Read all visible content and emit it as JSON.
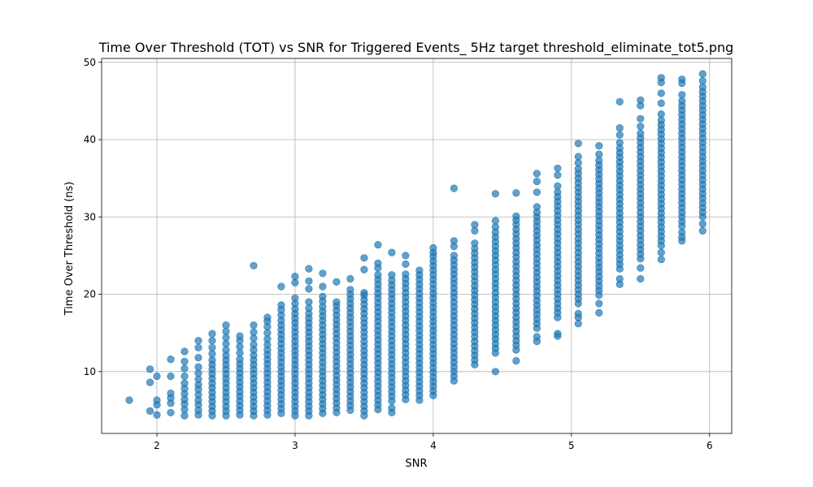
{
  "chart_data": {
    "type": "scatter",
    "title": "Time Over Threshold (TOT) vs SNR for Triggered Events_ 5Hz target threshold_eliminate_tot5.png",
    "xlabel": "SNR",
    "ylabel": "Time Over Threshold (ns)",
    "xlim": [
      1.6,
      6.16
    ],
    "ylim": [
      2.0,
      50.5
    ],
    "xticks": [
      2,
      3,
      4,
      5,
      6
    ],
    "yticks": [
      10,
      20,
      30,
      40,
      50
    ],
    "grid": true,
    "legend": "none",
    "marker_color": "#1f77b4",
    "marker_alpha": 0.7,
    "columns": [
      {
        "x": 1.8,
        "y": [
          6.3
        ]
      },
      {
        "x": 1.95,
        "y": [
          4.9,
          8.6,
          10.3
        ]
      },
      {
        "x": 2.0,
        "y": [
          4.4,
          5.7,
          6.3,
          9.4
        ]
      },
      {
        "x": 2.1,
        "y": [
          4.7,
          5.9,
          6.6,
          7.2,
          9.4,
          11.6
        ]
      },
      {
        "x": 2.2,
        "y": [
          4.3,
          5.1,
          5.8,
          6.4,
          7.1,
          7.8,
          8.5,
          9.4,
          10.4,
          11.3,
          12.6
        ]
      },
      {
        "x": 2.3,
        "y": [
          4.4,
          5.0,
          5.7,
          6.3,
          7.0,
          7.7,
          8.3,
          9.0,
          9.8,
          10.6,
          11.8,
          13.1,
          14.0
        ]
      },
      {
        "x": 2.4,
        "y": [
          4.3,
          4.9,
          5.5,
          6.1,
          6.7,
          7.3,
          7.9,
          8.5,
          9.1,
          9.7,
          10.3,
          10.9,
          11.5,
          12.3,
          13.1,
          14.0,
          14.9
        ]
      },
      {
        "x": 2.5,
        "y": [
          4.3,
          4.9,
          5.5,
          6.1,
          6.7,
          7.3,
          7.9,
          8.5,
          9.1,
          9.7,
          10.3,
          10.9,
          11.5,
          12.1,
          12.8,
          13.6,
          14.4,
          15.2,
          16.0
        ]
      },
      {
        "x": 2.6,
        "y": [
          4.4,
          5.0,
          5.6,
          6.2,
          6.8,
          7.4,
          8.0,
          8.6,
          9.2,
          9.8,
          10.4,
          11.0,
          11.6,
          12.4,
          13.2,
          14.0,
          14.6
        ]
      },
      {
        "x": 2.7,
        "y": [
          4.3,
          4.9,
          5.5,
          6.1,
          6.7,
          7.3,
          7.9,
          8.5,
          9.1,
          9.7,
          10.3,
          10.9,
          11.5,
          12.1,
          12.8,
          13.5,
          14.3,
          15.1,
          16.0,
          23.7
        ]
      },
      {
        "x": 2.8,
        "y": [
          4.4,
          5.0,
          5.6,
          6.2,
          6.8,
          7.4,
          8.0,
          8.6,
          9.2,
          9.8,
          10.4,
          11.0,
          11.6,
          12.2,
          12.8,
          13.5,
          14.2,
          15.0,
          15.8,
          16.5,
          17.0
        ]
      },
      {
        "x": 2.9,
        "y": [
          4.6,
          5.2,
          5.8,
          6.4,
          7.0,
          7.6,
          8.2,
          8.8,
          9.4,
          10.0,
          10.6,
          11.2,
          11.8,
          12.4,
          13.0,
          13.6,
          14.2,
          14.8,
          15.4,
          16.0,
          16.6,
          17.3,
          18.0,
          18.6,
          21.0
        ]
      },
      {
        "x": 3.0,
        "y": [
          4.3,
          4.9,
          5.5,
          6.1,
          6.7,
          7.3,
          7.9,
          8.5,
          9.1,
          9.7,
          10.3,
          10.9,
          11.5,
          12.1,
          12.7,
          13.3,
          13.9,
          14.5,
          15.1,
          15.7,
          16.3,
          16.9,
          17.5,
          18.1,
          18.8,
          19.5,
          21.5,
          22.3
        ]
      },
      {
        "x": 3.1,
        "y": [
          4.3,
          4.9,
          5.5,
          6.1,
          6.7,
          7.3,
          7.9,
          8.5,
          9.1,
          9.7,
          10.3,
          10.9,
          11.5,
          12.1,
          12.7,
          13.3,
          13.9,
          14.5,
          15.1,
          15.7,
          16.3,
          16.9,
          17.5,
          18.2,
          19.0,
          20.7,
          21.7,
          23.3
        ]
      },
      {
        "x": 3.2,
        "y": [
          4.6,
          5.2,
          5.8,
          6.4,
          7.0,
          7.6,
          8.2,
          8.8,
          9.4,
          10.0,
          10.6,
          11.2,
          11.8,
          12.4,
          13.0,
          13.6,
          14.2,
          14.8,
          15.4,
          16.0,
          16.6,
          17.2,
          17.8,
          18.4,
          19.1,
          19.7,
          21.0,
          22.7
        ]
      },
      {
        "x": 3.3,
        "y": [
          4.7,
          5.3,
          5.9,
          6.5,
          7.1,
          7.7,
          8.3,
          8.9,
          9.5,
          10.1,
          10.7,
          11.3,
          11.9,
          12.5,
          13.1,
          13.7,
          14.3,
          14.9,
          15.5,
          16.1,
          16.7,
          17.3,
          17.9,
          18.5,
          19.0,
          21.6
        ]
      },
      {
        "x": 3.4,
        "y": [
          5.0,
          5.6,
          6.2,
          6.8,
          7.4,
          8.0,
          8.6,
          9.2,
          9.8,
          10.4,
          11.0,
          11.6,
          12.2,
          12.8,
          13.4,
          14.0,
          14.6,
          15.2,
          15.8,
          16.4,
          17.0,
          17.6,
          18.2,
          18.8,
          19.4,
          20.0,
          20.6,
          22.0
        ]
      },
      {
        "x": 3.5,
        "y": [
          4.3,
          4.9,
          5.5,
          6.1,
          6.7,
          7.3,
          7.9,
          8.5,
          9.1,
          9.7,
          10.3,
          10.9,
          11.5,
          12.1,
          12.7,
          13.3,
          13.9,
          14.5,
          15.1,
          15.7,
          16.3,
          16.9,
          17.5,
          18.1,
          18.7,
          19.3,
          19.9,
          20.2,
          23.2,
          24.7
        ]
      },
      {
        "x": 3.6,
        "y": [
          5.1,
          5.7,
          6.3,
          6.9,
          7.5,
          8.1,
          8.7,
          9.3,
          9.9,
          10.5,
          11.1,
          11.7,
          12.3,
          12.9,
          13.5,
          14.1,
          14.7,
          15.3,
          15.9,
          16.5,
          17.1,
          17.7,
          18.3,
          18.9,
          19.5,
          20.1,
          20.7,
          21.3,
          21.9,
          22.5,
          23.4,
          24.0,
          26.4
        ]
      },
      {
        "x": 3.7,
        "y": [
          4.7,
          5.3,
          6.2,
          6.8,
          7.4,
          8.0,
          8.6,
          9.2,
          9.8,
          10.4,
          11.0,
          11.6,
          12.2,
          12.8,
          13.4,
          14.0,
          14.6,
          15.2,
          15.8,
          16.4,
          17.0,
          17.6,
          18.2,
          18.8,
          19.4,
          20.0,
          20.6,
          21.2,
          21.8,
          22.5,
          25.4
        ]
      },
      {
        "x": 3.8,
        "y": [
          6.4,
          7.0,
          7.6,
          8.2,
          8.8,
          9.4,
          10.0,
          10.6,
          11.2,
          11.8,
          12.4,
          13.0,
          13.6,
          14.2,
          14.8,
          15.4,
          16.0,
          16.6,
          17.2,
          17.8,
          18.4,
          19.0,
          19.6,
          20.2,
          20.8,
          21.4,
          22.0,
          22.6,
          23.9,
          25.0
        ]
      },
      {
        "x": 3.9,
        "y": [
          6.3,
          6.9,
          7.5,
          8.1,
          8.7,
          9.3,
          9.9,
          10.5,
          11.1,
          11.7,
          12.3,
          12.9,
          13.5,
          14.1,
          14.7,
          15.3,
          15.9,
          16.5,
          17.1,
          17.7,
          18.3,
          18.9,
          19.5,
          20.1,
          20.7,
          21.3,
          21.9,
          22.5,
          23.1
        ]
      },
      {
        "x": 4.0,
        "y": [
          6.9,
          7.5,
          8.1,
          8.7,
          9.3,
          9.9,
          10.5,
          11.1,
          11.7,
          12.3,
          12.9,
          13.5,
          14.1,
          14.7,
          15.3,
          15.9,
          16.5,
          17.1,
          17.7,
          18.3,
          18.9,
          19.5,
          20.1,
          20.7,
          21.3,
          21.9,
          22.5,
          23.1,
          23.7,
          24.3,
          24.9,
          25.4,
          26.0
        ]
      },
      {
        "x": 4.15,
        "y": [
          8.8,
          9.4,
          10.0,
          10.6,
          11.2,
          11.8,
          12.4,
          13.0,
          13.6,
          14.2,
          14.8,
          15.4,
          16.0,
          16.6,
          17.2,
          17.8,
          18.4,
          19.0,
          19.6,
          20.2,
          20.8,
          21.4,
          22.0,
          22.6,
          23.2,
          23.8,
          24.4,
          25.0,
          26.2,
          26.9,
          33.7
        ]
      },
      {
        "x": 4.3,
        "y": [
          10.9,
          11.5,
          12.1,
          12.7,
          13.3,
          13.9,
          14.5,
          15.1,
          15.7,
          16.3,
          16.9,
          17.5,
          18.1,
          18.7,
          19.3,
          19.9,
          20.5,
          21.1,
          21.7,
          22.3,
          22.9,
          23.5,
          24.1,
          24.7,
          25.3,
          25.9,
          26.6,
          28.2,
          29.0
        ]
      },
      {
        "x": 4.45,
        "y": [
          10.0,
          12.4,
          13.0,
          13.6,
          14.2,
          14.8,
          15.4,
          16.0,
          16.6,
          17.2,
          17.8,
          18.4,
          19.0,
          19.6,
          20.2,
          20.8,
          21.4,
          22.0,
          22.6,
          23.2,
          23.8,
          24.4,
          25.0,
          25.6,
          26.2,
          26.8,
          27.4,
          28.0,
          28.7,
          29.5,
          33.0
        ]
      },
      {
        "x": 4.6,
        "y": [
          11.4,
          12.8,
          13.4,
          14.0,
          14.6,
          15.2,
          15.8,
          16.4,
          17.0,
          17.6,
          18.2,
          18.8,
          19.4,
          20.0,
          20.6,
          21.2,
          21.8,
          22.4,
          23.0,
          23.6,
          24.2,
          24.8,
          25.4,
          26.0,
          26.6,
          27.2,
          27.8,
          28.4,
          29.0,
          29.6,
          30.1,
          33.1
        ]
      },
      {
        "x": 4.75,
        "y": [
          13.9,
          14.5,
          15.6,
          16.2,
          16.8,
          17.4,
          18.0,
          18.6,
          19.2,
          19.8,
          20.4,
          21.0,
          21.6,
          22.2,
          22.8,
          23.4,
          24.0,
          24.6,
          25.2,
          25.8,
          26.4,
          27.0,
          27.6,
          28.2,
          28.8,
          29.4,
          30.0,
          30.6,
          31.3,
          33.2,
          34.6,
          35.6
        ]
      },
      {
        "x": 4.9,
        "y": [
          14.6,
          14.9,
          17.0,
          17.6,
          18.2,
          18.8,
          19.4,
          20.0,
          20.6,
          21.2,
          21.8,
          22.4,
          23.0,
          23.6,
          24.2,
          24.8,
          25.4,
          26.0,
          26.6,
          27.2,
          27.8,
          28.4,
          29.0,
          29.6,
          30.2,
          30.8,
          31.4,
          32.0,
          32.6,
          33.2,
          34.0,
          35.4,
          36.3
        ]
      },
      {
        "x": 5.05,
        "y": [
          16.2,
          17.0,
          17.5,
          18.8,
          19.4,
          20.0,
          20.6,
          21.2,
          21.8,
          22.4,
          23.0,
          23.6,
          24.2,
          24.8,
          25.4,
          26.0,
          26.6,
          27.2,
          27.8,
          28.4,
          29.0,
          29.6,
          30.2,
          30.8,
          31.4,
          32.0,
          32.6,
          33.2,
          33.8,
          34.4,
          35.0,
          35.6,
          36.2,
          37.0,
          37.8,
          39.5
        ]
      },
      {
        "x": 5.2,
        "y": [
          17.6,
          18.8,
          19.9,
          20.5,
          21.1,
          21.7,
          22.3,
          22.9,
          23.5,
          24.1,
          24.7,
          25.3,
          25.9,
          26.5,
          27.1,
          27.7,
          28.3,
          28.9,
          29.5,
          30.1,
          30.7,
          31.3,
          31.9,
          32.5,
          33.1,
          33.7,
          34.3,
          34.9,
          35.5,
          36.1,
          36.7,
          37.3,
          38.1,
          39.2
        ]
      },
      {
        "x": 5.35,
        "y": [
          21.3,
          22.0,
          23.3,
          23.9,
          24.5,
          25.1,
          25.7,
          26.3,
          26.9,
          27.5,
          28.1,
          28.7,
          29.3,
          29.9,
          30.5,
          31.1,
          31.7,
          32.3,
          32.9,
          33.5,
          34.1,
          34.7,
          35.3,
          35.9,
          36.5,
          37.1,
          37.7,
          38.3,
          38.9,
          39.6,
          40.6,
          41.5,
          44.9
        ]
      },
      {
        "x": 5.5,
        "y": [
          22.0,
          23.4,
          24.6,
          25.2,
          25.8,
          26.4,
          27.0,
          27.6,
          28.2,
          28.8,
          29.4,
          30.0,
          30.6,
          31.2,
          31.8,
          32.4,
          33.0,
          33.6,
          34.2,
          34.8,
          35.4,
          36.0,
          36.6,
          37.2,
          37.8,
          38.4,
          39.0,
          39.6,
          40.2,
          40.8,
          41.7,
          42.7,
          44.4,
          45.1
        ]
      },
      {
        "x": 5.65,
        "y": [
          24.5,
          25.4,
          26.3,
          26.9,
          27.5,
          28.1,
          28.7,
          29.3,
          29.9,
          30.5,
          31.1,
          31.7,
          32.3,
          32.9,
          33.5,
          34.1,
          34.7,
          35.3,
          35.9,
          36.5,
          37.1,
          37.7,
          38.3,
          38.9,
          39.5,
          40.1,
          40.7,
          41.3,
          41.9,
          42.5,
          43.3,
          44.7,
          46.0,
          47.4,
          48.0
        ]
      },
      {
        "x": 5.8,
        "y": [
          26.9,
          27.4,
          28.0,
          28.8,
          29.4,
          30.0,
          30.6,
          31.2,
          31.8,
          32.4,
          33.0,
          33.6,
          34.2,
          34.8,
          35.4,
          36.0,
          36.6,
          37.2,
          37.8,
          38.4,
          39.0,
          39.6,
          40.2,
          40.8,
          41.4,
          42.0,
          42.6,
          43.2,
          43.8,
          44.4,
          45.0,
          45.8,
          47.3,
          47.8
        ]
      },
      {
        "x": 5.95,
        "y": [
          28.2,
          29.1,
          30.0,
          30.6,
          31.2,
          31.8,
          32.4,
          33.0,
          33.6,
          34.2,
          34.8,
          35.4,
          36.0,
          36.6,
          37.2,
          37.8,
          38.4,
          39.0,
          39.6,
          40.2,
          40.8,
          41.4,
          42.0,
          42.6,
          43.2,
          43.8,
          44.4,
          45.0,
          45.6,
          46.2,
          46.8,
          47.6,
          48.5
        ]
      }
    ]
  }
}
